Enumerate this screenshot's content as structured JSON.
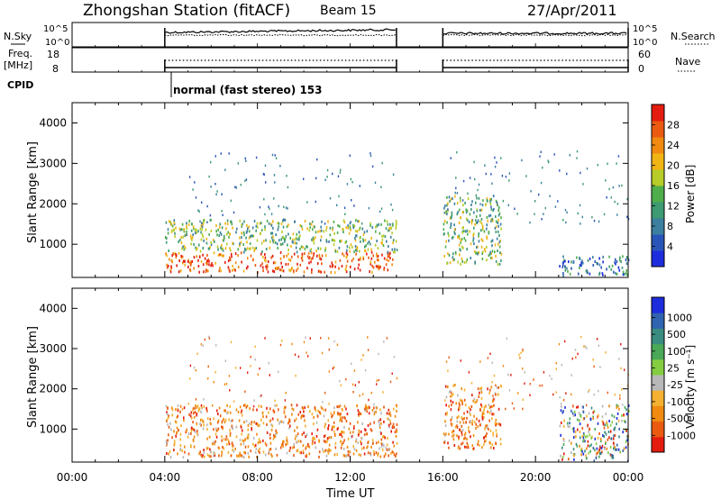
{
  "header": {
    "station": "Zhongshan Station (fitACF)",
    "beam": "Beam 15",
    "date": "27/Apr/2011"
  },
  "top_panels": {
    "nsky_label": "N.Sky",
    "nsky_ticks": [
      "10^5",
      "10^0"
    ],
    "nsearch_label": "N.Search",
    "nsearch_ticks": [
      "10^5",
      "10^0"
    ],
    "freq_label": "Freq.",
    "freq_unit": "[MHz]",
    "freq_ticks": [
      "18",
      "8"
    ],
    "nave_label": "Nave",
    "nave_ticks": [
      "60",
      "0"
    ],
    "cpid_label": "CPID",
    "cpid_text": "normal (fast stereo) 153"
  },
  "colors": {
    "power": [
      "#1e2ddc",
      "#2a55b8",
      "#3c7fa0",
      "#3d9a72",
      "#4fae4c",
      "#b6cc28",
      "#f0b414",
      "#f08a10",
      "#ea5a10",
      "#e41c10"
    ],
    "velocity": [
      "#e41c10",
      "#ea5a10",
      "#f08a10",
      "#f4b030",
      "#b8b8b8",
      "#84cc40",
      "#4aa858",
      "#3a8c80",
      "#3064b0",
      "#1e2ddc"
    ]
  },
  "chart_data": [
    {
      "type": "heatmap",
      "quantity": "power",
      "ylabel": "Slant Range [km]",
      "xlabel": "",
      "y_ticks": [
        1000,
        2000,
        3000,
        4000
      ],
      "ylim": [
        180,
        4500
      ],
      "x_ticks": [
        "00:00",
        "04:00",
        "08:00",
        "12:00",
        "16:00",
        "20:00",
        "00:00"
      ],
      "xlim_hours": [
        0,
        24
      ],
      "colorbar": {
        "label": "Power [dB]",
        "ticks": [
          "4",
          "8",
          "12",
          "16",
          "20",
          "24",
          "28"
        ]
      },
      "data_gaps_hours": [
        [
          14,
          16
        ]
      ],
      "echo_regions": [
        {
          "t_start": 4.0,
          "t_end": 14.0,
          "range_min": 300,
          "range_max": 800,
          "level": "high"
        },
        {
          "t_start": 4.0,
          "t_end": 14.0,
          "range_min": 800,
          "range_max": 1600,
          "level": "medium"
        },
        {
          "t_start": 16.0,
          "t_end": 18.5,
          "range_min": 500,
          "range_max": 2200,
          "level": "medium"
        },
        {
          "t_start": 21.0,
          "t_end": 24.0,
          "range_min": 200,
          "range_max": 700,
          "level": "low"
        }
      ]
    },
    {
      "type": "heatmap",
      "quantity": "velocity",
      "ylabel": "Slant Range [km]",
      "xlabel": "Time UT",
      "y_ticks": [
        1000,
        2000,
        3000,
        4000
      ],
      "ylim": [
        180,
        4500
      ],
      "x_ticks": [
        "00:00",
        "04:00",
        "08:00",
        "12:00",
        "16:00",
        "20:00",
        "00:00"
      ],
      "xlim_hours": [
        0,
        24
      ],
      "colorbar": {
        "label": "Velocity [m s⁻¹]",
        "ticks": [
          "-1000",
          "-500",
          "-100",
          "-25",
          "25",
          "100",
          "500",
          "1000"
        ]
      },
      "data_gaps_hours": [
        [
          14,
          16
        ]
      ],
      "echo_regions": [
        {
          "t_start": 4.0,
          "t_end": 14.0,
          "range_min": 300,
          "range_max": 1600,
          "level": "negative"
        },
        {
          "t_start": 16.0,
          "t_end": 18.5,
          "range_min": 500,
          "range_max": 2100,
          "level": "negative"
        },
        {
          "t_start": 21.0,
          "t_end": 24.0,
          "range_min": 200,
          "range_max": 1600,
          "level": "mixed"
        }
      ]
    }
  ]
}
